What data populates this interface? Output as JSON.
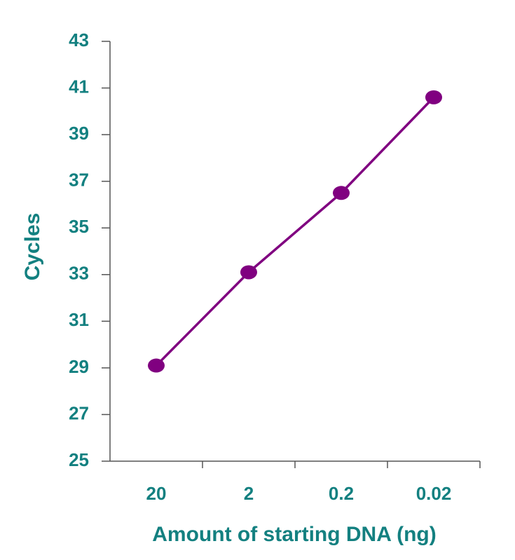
{
  "chart_data": {
    "type": "line",
    "x_label": "Amount of starting DNA (ng)",
    "y_label": "Cycles",
    "categories": [
      "20",
      "2",
      "0.2",
      "0.02"
    ],
    "values": [
      29.1,
      33.1,
      36.5,
      40.6
    ],
    "color": "#800080",
    "label_color": "#138080",
    "ylim": [
      25,
      43
    ],
    "yticks": [
      25,
      27,
      29,
      31,
      33,
      35,
      37,
      39,
      41,
      43
    ],
    "grid": false
  }
}
